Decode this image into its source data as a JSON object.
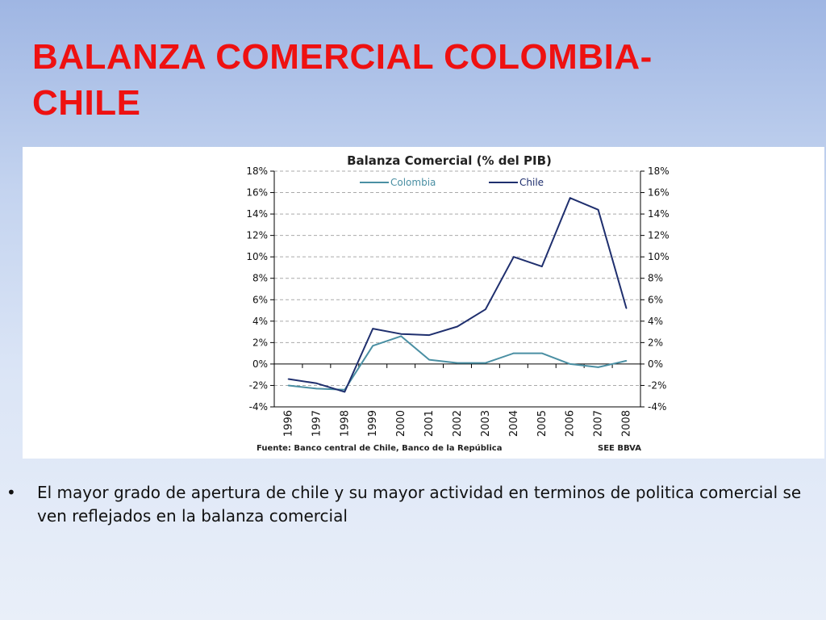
{
  "slide": {
    "title": "BALANZA COMERCIAL COLOMBIA-CHILE",
    "bullet_symbol": "•",
    "bullet_text": "El mayor grado de apertura de chile y su mayor actividad en terminos de politica comercial  se ven reflejados en la balanza comercial"
  },
  "chart_data": {
    "type": "line",
    "title": "Balanza Comercial (% del PIB)",
    "x": [
      "1996",
      "1997",
      "1998",
      "1999",
      "2000",
      "2001",
      "2002",
      "2003",
      "2004",
      "2005",
      "2006",
      "2007",
      "2008"
    ],
    "series": [
      {
        "name": "Colombia",
        "color": "#4a8fa3",
        "values": [
          -2.0,
          -2.3,
          -2.4,
          1.7,
          2.6,
          0.4,
          0.1,
          0.1,
          1.0,
          1.0,
          0.0,
          -0.3,
          0.3
        ]
      },
      {
        "name": "Chile",
        "color": "#1f2f6e",
        "values": [
          -1.4,
          -1.8,
          -2.6,
          3.3,
          2.8,
          2.7,
          3.5,
          5.1,
          10.0,
          9.1,
          15.5,
          14.4,
          5.2
        ]
      }
    ],
    "yticks": [
      "18%",
      "16%",
      "14%",
      "12%",
      "10%",
      "8%",
      "6%",
      "4%",
      "2%",
      "0%",
      "-2%",
      "-4%"
    ],
    "ylim": [
      -4,
      18
    ],
    "secondary_axis": "mirrored",
    "grid": true,
    "legend_position": "top",
    "source_note": "Fuente: Banco central de Chile, Banco de la República",
    "credit": "SEE BBVA"
  }
}
